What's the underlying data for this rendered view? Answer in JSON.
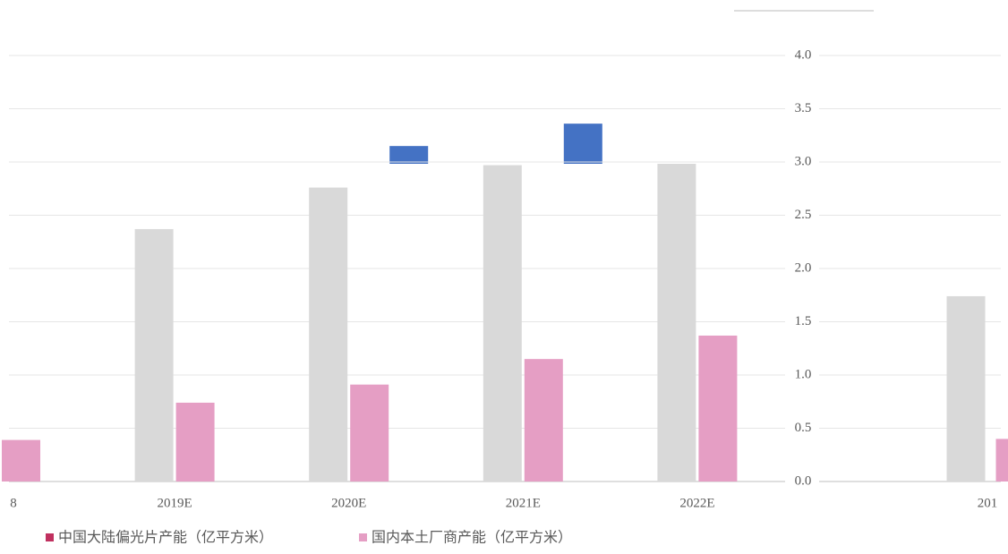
{
  "chart_data": [
    {
      "type": "bar",
      "categories": [
        "8",
        "2019E",
        "2020E",
        "2021E",
        "2022E"
      ],
      "series": [
        {
          "color": "#d9d9d9",
          "values": [
            null,
            2.37,
            2.76,
            2.97,
            2.99
          ]
        },
        {
          "color": "#e59ec4",
          "values": [
            0.39,
            0.74,
            0.91,
            1.15,
            1.37
          ]
        },
        {
          "color": "#4472c4",
          "values": [
            null,
            null,
            3.15,
            3.36,
            null
          ]
        }
      ],
      "legend": [
        {
          "name": "中国大陆偏光片产能（亿平方米）",
          "color": "#c0305f"
        },
        {
          "name": "国内本土厂商产能（亿平方米）",
          "color": "#e59ec4"
        }
      ],
      "ylim": [
        0,
        4
      ],
      "yticks": [
        0,
        0.5,
        1,
        1.5,
        2,
        2.5,
        3,
        3.5,
        4
      ],
      "grid": true
    },
    {
      "type": "bar",
      "categories": [
        "201"
      ],
      "series": [
        {
          "color": "#d9d9d9",
          "values": [
            1.74
          ]
        },
        {
          "color": "#e59ec4",
          "values": [
            0.4
          ]
        }
      ],
      "ylim": [
        0,
        4
      ],
      "yticks": [
        {
          "value": 0,
          "label": "0.0"
        },
        {
          "value": 0.5,
          "label": "0.5"
        },
        {
          "value": 1,
          "label": "1.0"
        },
        {
          "value": 1.5,
          "label": "1.5"
        },
        {
          "value": 2,
          "label": "2.0"
        },
        {
          "value": 2.5,
          "label": "2.5"
        },
        {
          "value": 3,
          "label": "3.0"
        },
        {
          "value": 3.5,
          "label": "3.5"
        },
        {
          "value": 4,
          "label": "4.0"
        }
      ],
      "grid": true
    }
  ]
}
